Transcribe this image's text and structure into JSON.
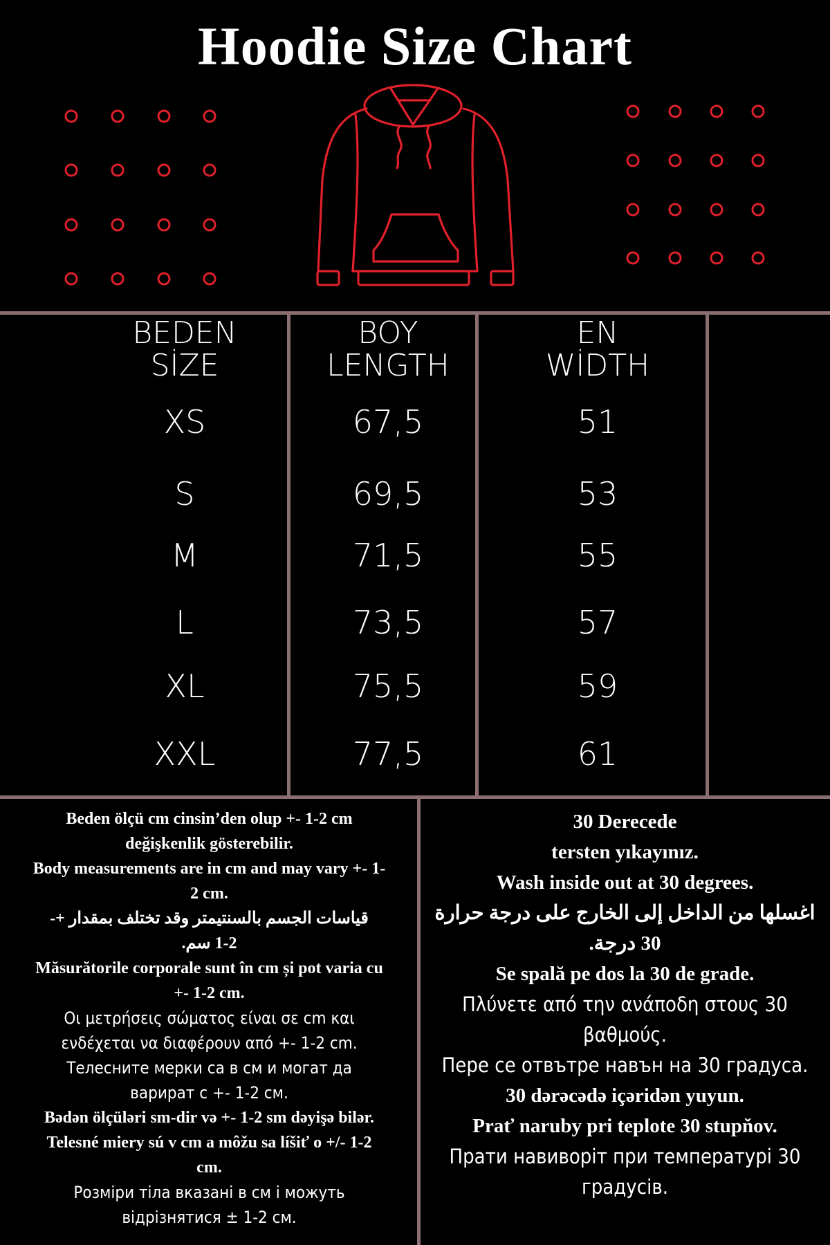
{
  "title": "Hoodie Size Chart",
  "colors": {
    "accent": "#e0202a",
    "divider": "#8a6e70",
    "background": "#000000",
    "text": "#ffffff"
  },
  "illustration": "hoodie-icon",
  "table": {
    "headers": [
      {
        "line1": "BEDEN",
        "line2": "SİZE"
      },
      {
        "line1": "BOY",
        "line2": "LENGTH"
      },
      {
        "line1": "EN",
        "line2": "WİDTH"
      }
    ],
    "rows": [
      {
        "size": "XS",
        "length": "67,5",
        "width": "51"
      },
      {
        "size": "S",
        "length": "69,5",
        "width": "53"
      },
      {
        "size": "M",
        "length": "71,5",
        "width": "55"
      },
      {
        "size": "L",
        "length": "73,5",
        "width": "57"
      },
      {
        "size": "XL",
        "length": "75,5",
        "width": "59"
      },
      {
        "size": "XXL",
        "length": "77,5",
        "width": "61"
      }
    ]
  },
  "measurement_note": [
    "Beden ölçü cm cinsin’den olup +- 1-2 cm\ndeğişkenlik gösterebilir.",
    "Body measurements are in cm and may vary +- 1-\n2 cm.",
    "قياسات الجسم بالسنتيمتر وقد تختلف بمقدار +-\n1-2 سم.",
    "Măsurătorile corporale sunt în cm și pot varia cu\n+- 1-2 cm.",
    "Οι μετρήσεις σώματος είναι σε cm και\nενδέχεται να διαφέρουν από +- 1-2 cm.",
    "Телесните мерки са в см и могат да\nварират с +- 1-2 см.",
    "Bədən ölçüləri sm-dir və +- 1-2 sm dəyişə bilər.",
    "Telesné miery sú v cm a môžu sa líšiť o +/- 1-2\ncm.",
    "Розміри тіла вказані в см і можуть\nвідрізнятися ± 1-2 см."
  ],
  "washing_note": [
    "30 Derecede\ntersten yıkayınız.",
    "Wash inside out at 30 degrees.",
    "اغسلها من الداخل إلى الخارج على درجة حرارة\n30 درجة.",
    "Se spală pe dos la 30 de grade.",
    "Πλύνετε από την ανάποδη στους 30\nβαθμούς.",
    "Пере се отвътре навън на 30 градуса.",
    "30 dərəcədə içəridən yuyun.",
    "Prať naruby pri teplote 30 stupňov.",
    "Прати навиворіт при температурі 30\nградусів."
  ]
}
